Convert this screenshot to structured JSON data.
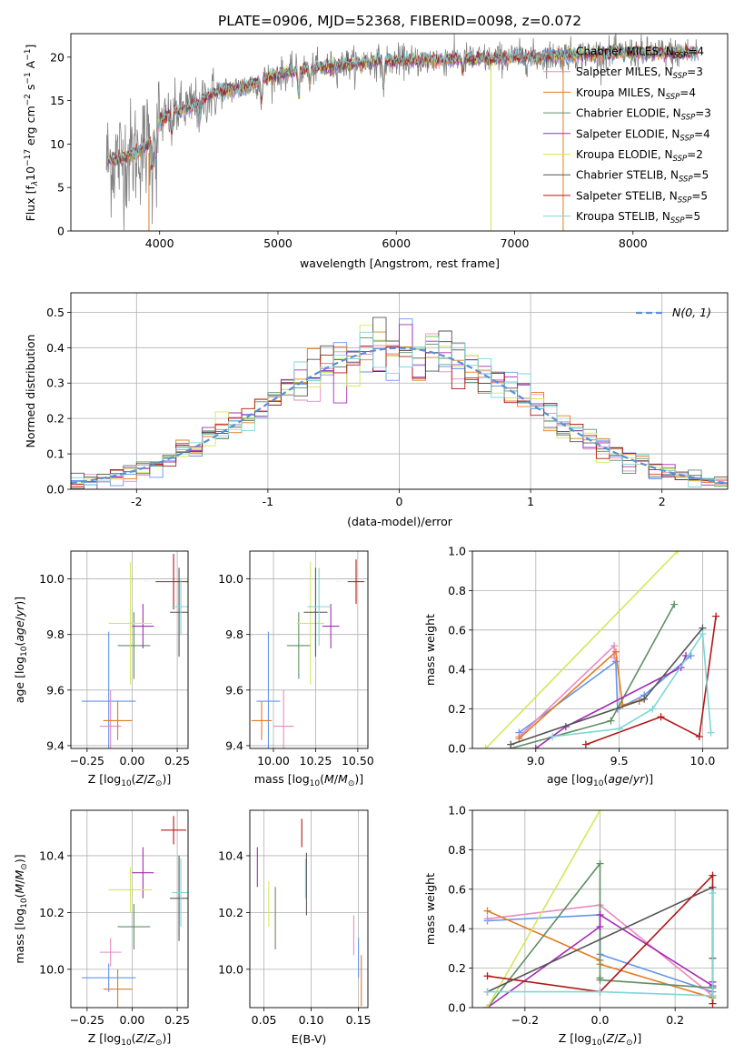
{
  "figure_title": "PLATE=0906, MJD=52368, FIBERID=0098, z=0.072",
  "models": [
    {
      "name": "Chabrier MILES",
      "n": "4",
      "color": "#6495ED"
    },
    {
      "name": "Salpeter MILES",
      "n": "3",
      "color": "#E88AC0"
    },
    {
      "name": "Kroupa MILES",
      "n": "4",
      "color": "#E07C22"
    },
    {
      "name": "Chabrier ELODIE",
      "n": "3",
      "color": "#5E8F64"
    },
    {
      "name": "Salpeter ELODIE",
      "n": "4",
      "color": "#A32CB4"
    },
    {
      "name": "Kroupa ELODIE",
      "n": "2",
      "color": "#D4E85A"
    },
    {
      "name": "Chabrier STELIB",
      "n": "5",
      "color": "#555555"
    },
    {
      "name": "Salpeter STELIB",
      "n": "5",
      "color": "#B01818"
    },
    {
      "name": "Kroupa STELIB",
      "n": "5",
      "color": "#7ED6D8"
    }
  ],
  "data_color": "#808080",
  "gaussian_color": "#5B8FD6",
  "chart_data": [
    {
      "id": "spectrum",
      "type": "line",
      "title": "PLATE=0906, MJD=52368, FIBERID=0098, z=0.072",
      "xlabel": "wavelength [Angstrom, rest frame]",
      "ylabel": "Flux [f_λ10^-17 erg cm^-2 s^-1 A^-1]",
      "xlim": [
        3250,
        8800
      ],
      "ylim": [
        0,
        22.7
      ],
      "xticks": [
        4000,
        5000,
        6000,
        7000,
        8000
      ],
      "yticks": [
        0,
        5,
        10,
        15,
        20
      ],
      "legend_position": "top-right",
      "continuum": {
        "x": [
          3550,
          3700,
          3800,
          3900,
          4000,
          4100,
          4200,
          4300,
          4400,
          4500,
          4700,
          4900,
          5000,
          5200,
          5400,
          5600,
          5800,
          6000,
          6200,
          6400,
          6600,
          6800,
          7000,
          7200,
          7400,
          7600,
          7800,
          8000,
          8200,
          8400,
          8550
        ],
        "y": [
          8.0,
          8.5,
          9.0,
          10.0,
          12.5,
          13.5,
          14.0,
          14.5,
          15.5,
          16.0,
          16.5,
          17.5,
          18.0,
          18.5,
          18.8,
          19.2,
          19.5,
          19.6,
          19.6,
          19.7,
          19.8,
          19.8,
          20.0,
          20.0,
          20.2,
          20.3,
          20.4,
          20.5,
          20.5,
          20.5,
          20.5
        ]
      },
      "absorption_lines": [
        {
          "x": 3934,
          "depth": 4.5
        },
        {
          "x": 3969,
          "depth": 3.5
        },
        {
          "x": 4102,
          "depth": 2.5
        },
        {
          "x": 4340,
          "depth": 2.5
        },
        {
          "x": 4861,
          "depth": 2.5
        },
        {
          "x": 5175,
          "depth": 3.0
        },
        {
          "x": 5270,
          "depth": 2.0
        },
        {
          "x": 5892,
          "depth": 3.5
        },
        {
          "x": 6563,
          "depth": 1.5
        }
      ]
    },
    {
      "id": "residuals",
      "type": "histogram",
      "xlabel": "(data-model)/error",
      "ylabel": "Normed distribution",
      "xlim": [
        -2.5,
        2.5
      ],
      "ylim": [
        0,
        0.555
      ],
      "xticks": [
        -2,
        -1,
        0,
        1,
        2
      ],
      "yticks": [
        0.0,
        0.1,
        0.2,
        0.3,
        0.4,
        0.5
      ],
      "grid": true,
      "legend": "N(0,1)",
      "legend_position": "top-right",
      "bin_width": 0.1,
      "curve": {
        "name": "N(0,1)",
        "mean": 0,
        "sigma": 1,
        "style": "dashed"
      }
    },
    {
      "id": "age_vs_Z",
      "type": "scatter",
      "xlabel": "Z [log10(Z/Z⊙)]",
      "ylabel": "age [log10(age/yr)]",
      "xlim": [
        -0.34,
        0.31
      ],
      "ylim": [
        9.39,
        10.1
      ],
      "xticks": [
        -0.25,
        0.0,
        0.25
      ],
      "xticklabels": [
        "−0.25",
        "0.00",
        "0.25"
      ],
      "yticks": [
        9.4,
        9.6,
        9.8,
        10.0
      ],
      "grid": true,
      "points": [
        {
          "x": -0.13,
          "y": 9.56,
          "xerr": 0.15,
          "yerr": 0.25
        },
        {
          "x": -0.12,
          "y": 9.47,
          "xerr": 0.06,
          "yerr": 0.13
        },
        {
          "x": -0.08,
          "y": 9.49,
          "xerr": 0.08,
          "yerr": 0.07
        },
        {
          "x": 0.01,
          "y": 9.76,
          "xerr": 0.09,
          "yerr": 0.12
        },
        {
          "x": 0.06,
          "y": 9.83,
          "xerr": 0.06,
          "yerr": 0.08
        },
        {
          "x": -0.01,
          "y": 9.84,
          "xerr": 0.12,
          "yerr": 0.22
        },
        {
          "x": 0.26,
          "y": 9.88,
          "xerr": 0.05,
          "yerr": 0.16
        },
        {
          "x": 0.23,
          "y": 9.99,
          "xerr": 0.1,
          "yerr": 0.1
        },
        {
          "x": 0.27,
          "y": 9.9,
          "xerr": 0.05,
          "yerr": 0.1
        }
      ]
    },
    {
      "id": "age_vs_mass",
      "type": "scatter",
      "xlabel": "mass [log10(M/M⊙)]",
      "xlim": [
        9.86,
        10.56
      ],
      "ylim": [
        9.39,
        10.1
      ],
      "xticks": [
        10.0,
        10.25,
        10.5
      ],
      "xticklabels": [
        "10.00",
        "10.25",
        "10.50"
      ],
      "yticks": [
        9.4,
        9.6,
        9.8,
        10.0
      ],
      "grid": true,
      "points": [
        {
          "x": 9.97,
          "y": 9.56,
          "xerr": 0.07,
          "yerr": 0.25
        },
        {
          "x": 10.06,
          "y": 9.47,
          "xerr": 0.06,
          "yerr": 0.13
        },
        {
          "x": 9.93,
          "y": 9.49,
          "xerr": 0.06,
          "yerr": 0.07
        },
        {
          "x": 10.15,
          "y": 9.76,
          "xerr": 0.07,
          "yerr": 0.12
        },
        {
          "x": 10.34,
          "y": 9.83,
          "xerr": 0.05,
          "yerr": 0.08
        },
        {
          "x": 10.22,
          "y": 9.84,
          "xerr": 0.08,
          "yerr": 0.22
        },
        {
          "x": 10.25,
          "y": 9.88,
          "xerr": 0.07,
          "yerr": 0.16
        },
        {
          "x": 10.49,
          "y": 9.99,
          "xerr": 0.05,
          "yerr": 0.08
        },
        {
          "x": 10.27,
          "y": 9.9,
          "xerr": 0.07,
          "yerr": 0.14
        }
      ]
    },
    {
      "id": "massweight_vs_age",
      "type": "line",
      "xlabel": "age [log10(age/yr)]",
      "ylabel": "mass weight",
      "xlim": [
        8.62,
        10.15
      ],
      "ylim": [
        0,
        1.0
      ],
      "xticks": [
        9.0,
        9.5,
        10.0
      ],
      "yticks": [
        0.0,
        0.2,
        0.4,
        0.6,
        0.8,
        1.0
      ],
      "grid": true,
      "series": [
        {
          "x": [
            8.9,
            9.48,
            9.49,
            9.65,
            9.93
          ],
          "y": [
            0.08,
            0.44,
            0.2,
            0.27,
            0.47
          ]
        },
        {
          "x": [
            8.9,
            9.47,
            9.47
          ],
          "y": [
            0.06,
            0.52,
            0.46
          ]
        },
        {
          "x": [
            8.9,
            9.48,
            9.52,
            9.62
          ],
          "y": [
            0.05,
            0.49,
            0.22,
            0.24
          ]
        },
        {
          "x": [
            8.85,
            9.45,
            9.83
          ],
          "y": [
            0.0,
            0.14,
            0.73
          ]
        },
        {
          "x": [
            9.0,
            9.18,
            9.87,
            9.9
          ],
          "y": [
            0.0,
            0.11,
            0.41,
            0.47
          ]
        },
        {
          "x": [
            8.7,
            9.85
          ],
          "y": [
            0.0,
            1.0
          ]
        },
        {
          "x": [
            8.85,
            9.65,
            10.0
          ],
          "y": [
            0.02,
            0.25,
            0.61
          ]
        },
        {
          "x": [
            9.3,
            9.75,
            9.98,
            10.08
          ],
          "y": [
            0.02,
            0.16,
            0.06,
            0.67
          ]
        },
        {
          "x": [
            9.1,
            9.5,
            9.7,
            10.0,
            10.05
          ],
          "y": [
            0.06,
            0.1,
            0.2,
            0.58,
            0.08
          ]
        }
      ]
    },
    {
      "id": "mass_vs_Z",
      "type": "scatter",
      "xlabel": "Z [log10(Z/Z⊙)]",
      "ylabel": "mass [log10(M/M⊙)]",
      "xlim": [
        -0.34,
        0.31
      ],
      "ylim": [
        9.865,
        10.56
      ],
      "xticks": [
        -0.25,
        0.0,
        0.25
      ],
      "xticklabels": [
        "−0.25",
        "0.00",
        "0.25"
      ],
      "yticks": [
        10.0,
        10.2,
        10.4
      ],
      "grid": true,
      "points": [
        {
          "x": -0.13,
          "y": 9.97,
          "xerr": 0.15,
          "yerr": 0.05
        },
        {
          "x": -0.12,
          "y": 10.06,
          "xerr": 0.06,
          "yerr": 0.05
        },
        {
          "x": -0.08,
          "y": 9.93,
          "xerr": 0.08,
          "yerr": 0.07
        },
        {
          "x": 0.01,
          "y": 10.15,
          "xerr": 0.09,
          "yerr": 0.08
        },
        {
          "x": 0.06,
          "y": 10.34,
          "xerr": 0.06,
          "yerr": 0.09
        },
        {
          "x": -0.01,
          "y": 10.28,
          "xerr": 0.12,
          "yerr": 0.08
        },
        {
          "x": 0.26,
          "y": 10.25,
          "xerr": 0.05,
          "yerr": 0.15
        },
        {
          "x": 0.23,
          "y": 10.49,
          "xerr": 0.07,
          "yerr": 0.05
        },
        {
          "x": 0.27,
          "y": 10.27,
          "xerr": 0.05,
          "yerr": 0.12
        }
      ]
    },
    {
      "id": "mass_vs_ebv",
      "type": "scatter",
      "xlabel": "E(B-V)",
      "xlim": [
        0.035,
        0.16
      ],
      "ylim": [
        9.865,
        10.56
      ],
      "xticks": [
        0.05,
        0.1,
        0.15
      ],
      "xticklabels": [
        "0.05",
        "0.10",
        "0.15"
      ],
      "yticks": [
        10.0,
        10.2,
        10.4
      ],
      "grid": true,
      "points": [
        {
          "x": 0.15,
          "y": 10.04,
          "yerr": 0.07
        },
        {
          "x": 0.145,
          "y": 10.12,
          "yerr": 0.07
        },
        {
          "x": 0.153,
          "y": 9.96,
          "yerr": 0.09
        },
        {
          "x": 0.062,
          "y": 10.18,
          "yerr": 0.11
        },
        {
          "x": 0.043,
          "y": 10.36,
          "yerr": 0.07
        },
        {
          "x": 0.055,
          "y": 10.23,
          "yerr": 0.08
        },
        {
          "x": 0.095,
          "y": 10.3,
          "yerr": 0.11
        },
        {
          "x": 0.09,
          "y": 10.48,
          "yerr": 0.05
        },
        {
          "x": 0.094,
          "y": 10.32,
          "yerr": 0.07
        }
      ]
    },
    {
      "id": "massweight_vs_Z",
      "type": "line",
      "xlabel": "Z [log10(Z/Z⊙)]",
      "ylabel": "mass weight",
      "xlim": [
        -0.34,
        0.34
      ],
      "ylim": [
        0,
        1.0
      ],
      "xticks": [
        -0.2,
        0.0,
        0.2
      ],
      "xticklabels": [
        "−0.2",
        "0.0",
        "0.2"
      ],
      "yticks": [
        0.0,
        0.2,
        0.4,
        0.6,
        0.8,
        1.0
      ],
      "grid": true,
      "series": [
        {
          "x": [
            -0.3,
            0.0,
            0.0,
            0.3
          ],
          "y": [
            0.44,
            0.47,
            0.27,
            0.08
          ]
        },
        {
          "x": [
            -0.3,
            0.0,
            0.3
          ],
          "y": [
            0.45,
            0.52,
            0.06
          ]
        },
        {
          "x": [
            -0.3,
            0.0,
            0.0,
            0.3
          ],
          "y": [
            0.49,
            0.24,
            0.22,
            0.05
          ]
        },
        {
          "x": [
            -0.3,
            0.0,
            0.0,
            0.0,
            0.3
          ],
          "y": [
            0.0,
            0.73,
            0.15,
            0.14,
            0.1
          ]
        },
        {
          "x": [
            -0.3,
            0.0,
            0.0,
            0.3,
            0.3
          ],
          "y": [
            0.0,
            0.41,
            0.47,
            0.11,
            0.13
          ]
        },
        {
          "x": [
            -0.3,
            0.0
          ],
          "y": [
            0.0,
            1.0
          ]
        },
        {
          "x": [
            -0.3,
            0.3,
            0.3
          ],
          "y": [
            0.08,
            0.61,
            0.25
          ]
        },
        {
          "x": [
            -0.3,
            0.0,
            0.3,
            0.3
          ],
          "y": [
            0.16,
            0.08,
            0.67,
            0.02
          ]
        },
        {
          "x": [
            -0.3,
            0.0,
            0.3,
            0.3
          ],
          "y": [
            0.08,
            0.08,
            0.06,
            0.58
          ]
        }
      ]
    }
  ]
}
